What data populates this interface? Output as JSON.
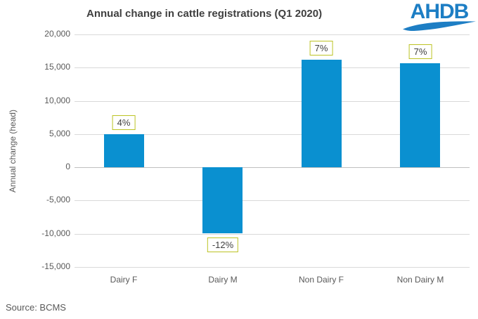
{
  "header": {
    "logo_text": "AHDB"
  },
  "source_note": "Source: BCMS",
  "colors": {
    "bar": "#0a90d0",
    "logo_blue": "#1d7ec4",
    "label_box_border": "#bcc324",
    "grid": "#d9d9d9",
    "zero_line": "#bfbfbf",
    "axis_text": "#595959",
    "title_text": "#404040"
  },
  "chart_data": {
    "type": "bar",
    "title": "Annual change in cattle registrations (Q1 2020)",
    "categories": [
      "Dairy F",
      "Dairy M",
      "Non Dairy F",
      "Non Dairy M"
    ],
    "values": [
      5000,
      -9900,
      16200,
      15700
    ],
    "bar_labels": [
      "4%",
      "-12%",
      "7%",
      "7%"
    ],
    "xlabel": "",
    "ylabel": "Annual change (head)",
    "ylim": [
      -15000,
      20000
    ],
    "yticks": [
      20000,
      15000,
      10000,
      5000,
      0,
      -5000,
      -10000,
      -15000
    ],
    "ytick_labels": [
      "20,000",
      "15,000",
      "10,000",
      "5,000",
      "0",
      "-5,000",
      "-10,000",
      "-15,000"
    ],
    "grid": true,
    "legend": false
  }
}
